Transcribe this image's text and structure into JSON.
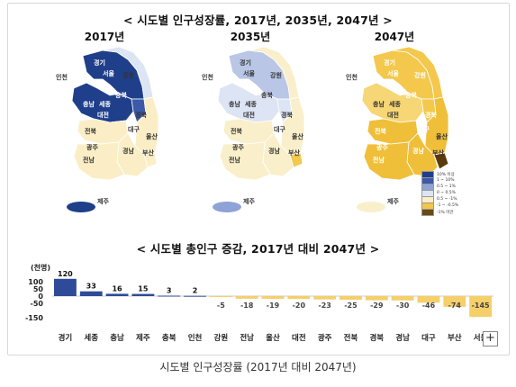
{
  "top_title": "< 시도별 인구성장률, 2017년, 2035년, 2047년 >",
  "maps": [
    {
      "year": "2017년"
    },
    {
      "year": "2035년"
    },
    {
      "year": "2047년"
    }
  ],
  "region_labels": {
    "seoul": "서울",
    "incheon": "인천",
    "gyeonggi": "경기",
    "gangwon": "강원",
    "chungbuk": "충북",
    "chungnam": "충남",
    "sejong": "세종",
    "daejeon": "대전",
    "gyeongbuk": "경북",
    "jeonbuk": "전북",
    "daegu": "대구",
    "ulsan": "울산",
    "gwangju": "광주",
    "gyeongnam": "경남",
    "jeonnam": "전남",
    "busan": "부산",
    "jeju": "제주"
  },
  "legend": [
    {
      "label": "10% 이상",
      "color": "#1f3f8a"
    },
    {
      "label": "1 ~ 10%",
      "color": "#3d5aa8"
    },
    {
      "label": "0.5 ~ 1%",
      "color": "#8ea3d6"
    },
    {
      "label": "0 ~ 0.5%",
      "color": "#dde4f3"
    },
    {
      "label": "0.5 ~ -1%",
      "color": "#fbeec6"
    },
    {
      "label": "-1 ~ -0.5%",
      "color": "#f2c64a"
    },
    {
      "label": "-1% 미만",
      "color": "#6a4a10"
    }
  ],
  "colors": {
    "dark_blue": "#2a4596",
    "mid_blue": "#4a68b6",
    "light_blue": "#b9c6e6",
    "pale_blue": "#e1e7f4",
    "pale_yellow": "#faefcb",
    "yellow": "#f3c84d",
    "dark_brown": "#5a3a0a",
    "neg_bar": "#f5cf6a",
    "pos_bar": "#2e4a98"
  },
  "chart_data": {
    "type": "bar",
    "title": "< 시도별 총인구 증감, 2017년 대비 2047년 >",
    "ylabel": "(천명)",
    "ylim": [
      -150,
      130
    ],
    "yticks": [
      100,
      50,
      0,
      -50,
      -150
    ],
    "yticks_labels": [
      "100",
      "50",
      "0",
      "-50",
      "-150"
    ],
    "categories": [
      "경기",
      "세종",
      "충남",
      "제주",
      "충북",
      "인천",
      "강원",
      "전남",
      "울산",
      "대전",
      "광주",
      "전북",
      "경북",
      "경남",
      "대구",
      "부산",
      "서울"
    ],
    "values": [
      120,
      33,
      16,
      15,
      3,
      2,
      -5,
      -18,
      -19,
      -20,
      -23,
      -25,
      -29,
      -30,
      -46,
      -74,
      -145
    ],
    "value_labels": [
      "120",
      "33",
      "16",
      "15",
      "3",
      "2",
      "-5",
      "-18",
      "-19",
      "-20",
      "-23",
      "-25",
      "-29",
      "-30",
      "-46",
      "-74",
      "-145"
    ]
  },
  "caption": "시도별 인구성장률 (2017년 대비 2047년)",
  "expand_button": "+"
}
